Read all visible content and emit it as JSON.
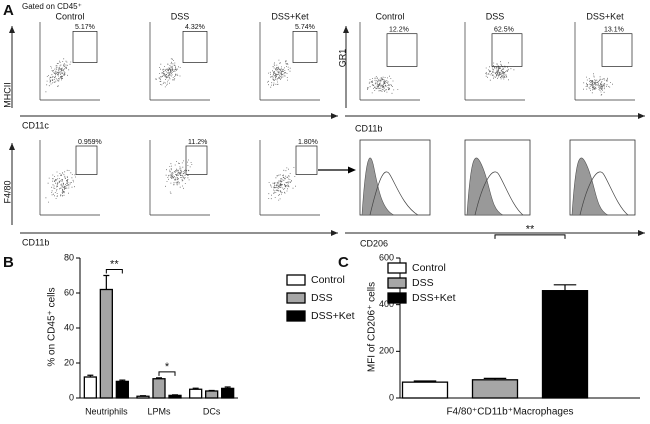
{
  "panel_a": {
    "label": "A",
    "gating": "Gated on CD45⁺",
    "groups": [
      {
        "samples": [
          "Control",
          "DSS",
          "DSS+Ket"
        ],
        "gates": [
          "5.17%",
          "4.32%",
          "5.74%"
        ],
        "x_label": "CD11c",
        "y_label": "MHCII"
      },
      {
        "samples": [
          "Control",
          "DSS",
          "DSS+Ket"
        ],
        "gates": [
          "12.2%",
          "62.5%",
          "13.1%"
        ],
        "x_label": "CD11b",
        "y_label": "GR1"
      },
      {
        "gates": [
          "0.959%",
          "11.2%",
          "1.80%"
        ],
        "x_label": "CD11b",
        "y_label": "F4/80"
      },
      {
        "x_label": "CD206"
      }
    ]
  },
  "chart_data": [
    {
      "type": "bar",
      "label": "B",
      "y_label": "% on CD45⁺ cells",
      "categories": [
        "Neutriphils",
        "LPMs",
        "DCs"
      ],
      "series": [
        {
          "name": "Control",
          "color": "#ffffff",
          "values": [
            12,
            1,
            5
          ],
          "errors": [
            1,
            0.3,
            0.6
          ]
        },
        {
          "name": "DSS",
          "color": "#a6a6a6",
          "values": [
            62,
            11,
            4
          ],
          "errors": [
            8,
            0.5,
            0.3
          ]
        },
        {
          "name": "DSS+Ket",
          "color": "#000000",
          "values": [
            9.5,
            1.5,
            5.5
          ],
          "errors": [
            0.7,
            0.3,
            0.8
          ]
        }
      ],
      "ylim": [
        0,
        80
      ],
      "yticks": [
        0,
        20,
        40,
        60,
        80
      ],
      "legend": "top-right",
      "annotations": [
        "**",
        "*"
      ]
    },
    {
      "type": "bar",
      "label": "C",
      "y_label": "MFI of CD206⁺ cells",
      "categories": [
        "F4/80⁺CD11b⁺Macrophages"
      ],
      "series": [
        {
          "name": "Control",
          "color": "#ffffff",
          "values": [
            68
          ],
          "errors": [
            5
          ]
        },
        {
          "name": "DSS",
          "color": "#a6a6a6",
          "values": [
            78
          ],
          "errors": [
            6
          ]
        },
        {
          "name": "DSS+Ket",
          "color": "#000000",
          "values": [
            460
          ],
          "errors": [
            25
          ]
        }
      ],
      "ylim": [
        0,
        600
      ],
      "yticks": [
        0,
        200,
        400,
        600
      ],
      "legend": "top-left",
      "annotations": [
        "**"
      ]
    }
  ]
}
